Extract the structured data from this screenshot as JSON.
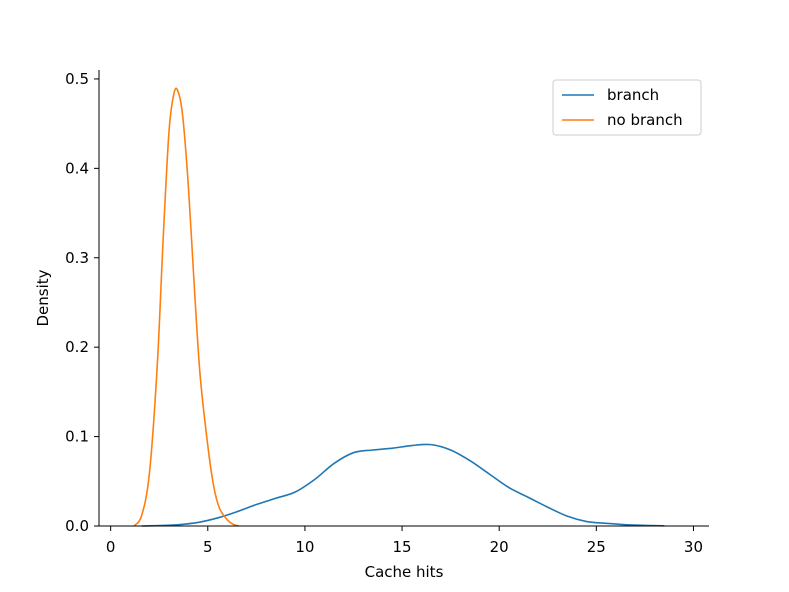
{
  "chart_data": {
    "type": "line",
    "title": "",
    "xlabel": "Cache hits",
    "ylabel": "Density",
    "xlim": [
      -0.6,
      30.8
    ],
    "ylim": [
      0,
      0.51
    ],
    "xticks": [
      0,
      5,
      10,
      15,
      20,
      25,
      30
    ],
    "yticks": [
      0.0,
      0.1,
      0.2,
      0.3,
      0.4,
      0.5
    ],
    "xtick_labels": [
      "0",
      "5",
      "10",
      "15",
      "20",
      "25",
      "30"
    ],
    "ytick_labels": [
      "0.0",
      "0.1",
      "0.2",
      "0.3",
      "0.4",
      "0.5"
    ],
    "grid": false,
    "legend_position": "top-right",
    "series": [
      {
        "name": "branch",
        "color": "#1f77b4",
        "x": [
          1.6,
          2.5,
          3.5,
          4.5,
          5.5,
          6.5,
          7.5,
          8.5,
          9.5,
          10.5,
          11.5,
          12.5,
          13.5,
          14.5,
          15.5,
          16.5,
          17.5,
          18.5,
          19.5,
          20.5,
          21.5,
          22.5,
          23.5,
          24.5,
          25.5,
          26.5,
          27.5,
          28.5
        ],
        "y": [
          0.0,
          0.0005,
          0.0015,
          0.004,
          0.009,
          0.016,
          0.024,
          0.031,
          0.038,
          0.052,
          0.07,
          0.082,
          0.085,
          0.087,
          0.09,
          0.091,
          0.085,
          0.073,
          0.058,
          0.043,
          0.032,
          0.021,
          0.011,
          0.005,
          0.003,
          0.0015,
          0.0007,
          0.0002
        ]
      },
      {
        "name": "no branch",
        "color": "#ff7f0e",
        "x": [
          1.2,
          1.6,
          2.0,
          2.4,
          2.7,
          3.0,
          3.25,
          3.45,
          3.7,
          4.0,
          4.3,
          4.6,
          5.0,
          5.3,
          5.6,
          6.0,
          6.3,
          6.6
        ],
        "y": [
          0.0,
          0.012,
          0.06,
          0.18,
          0.32,
          0.44,
          0.483,
          0.487,
          0.46,
          0.38,
          0.27,
          0.17,
          0.09,
          0.045,
          0.02,
          0.007,
          0.002,
          0.0
        ]
      }
    ]
  }
}
